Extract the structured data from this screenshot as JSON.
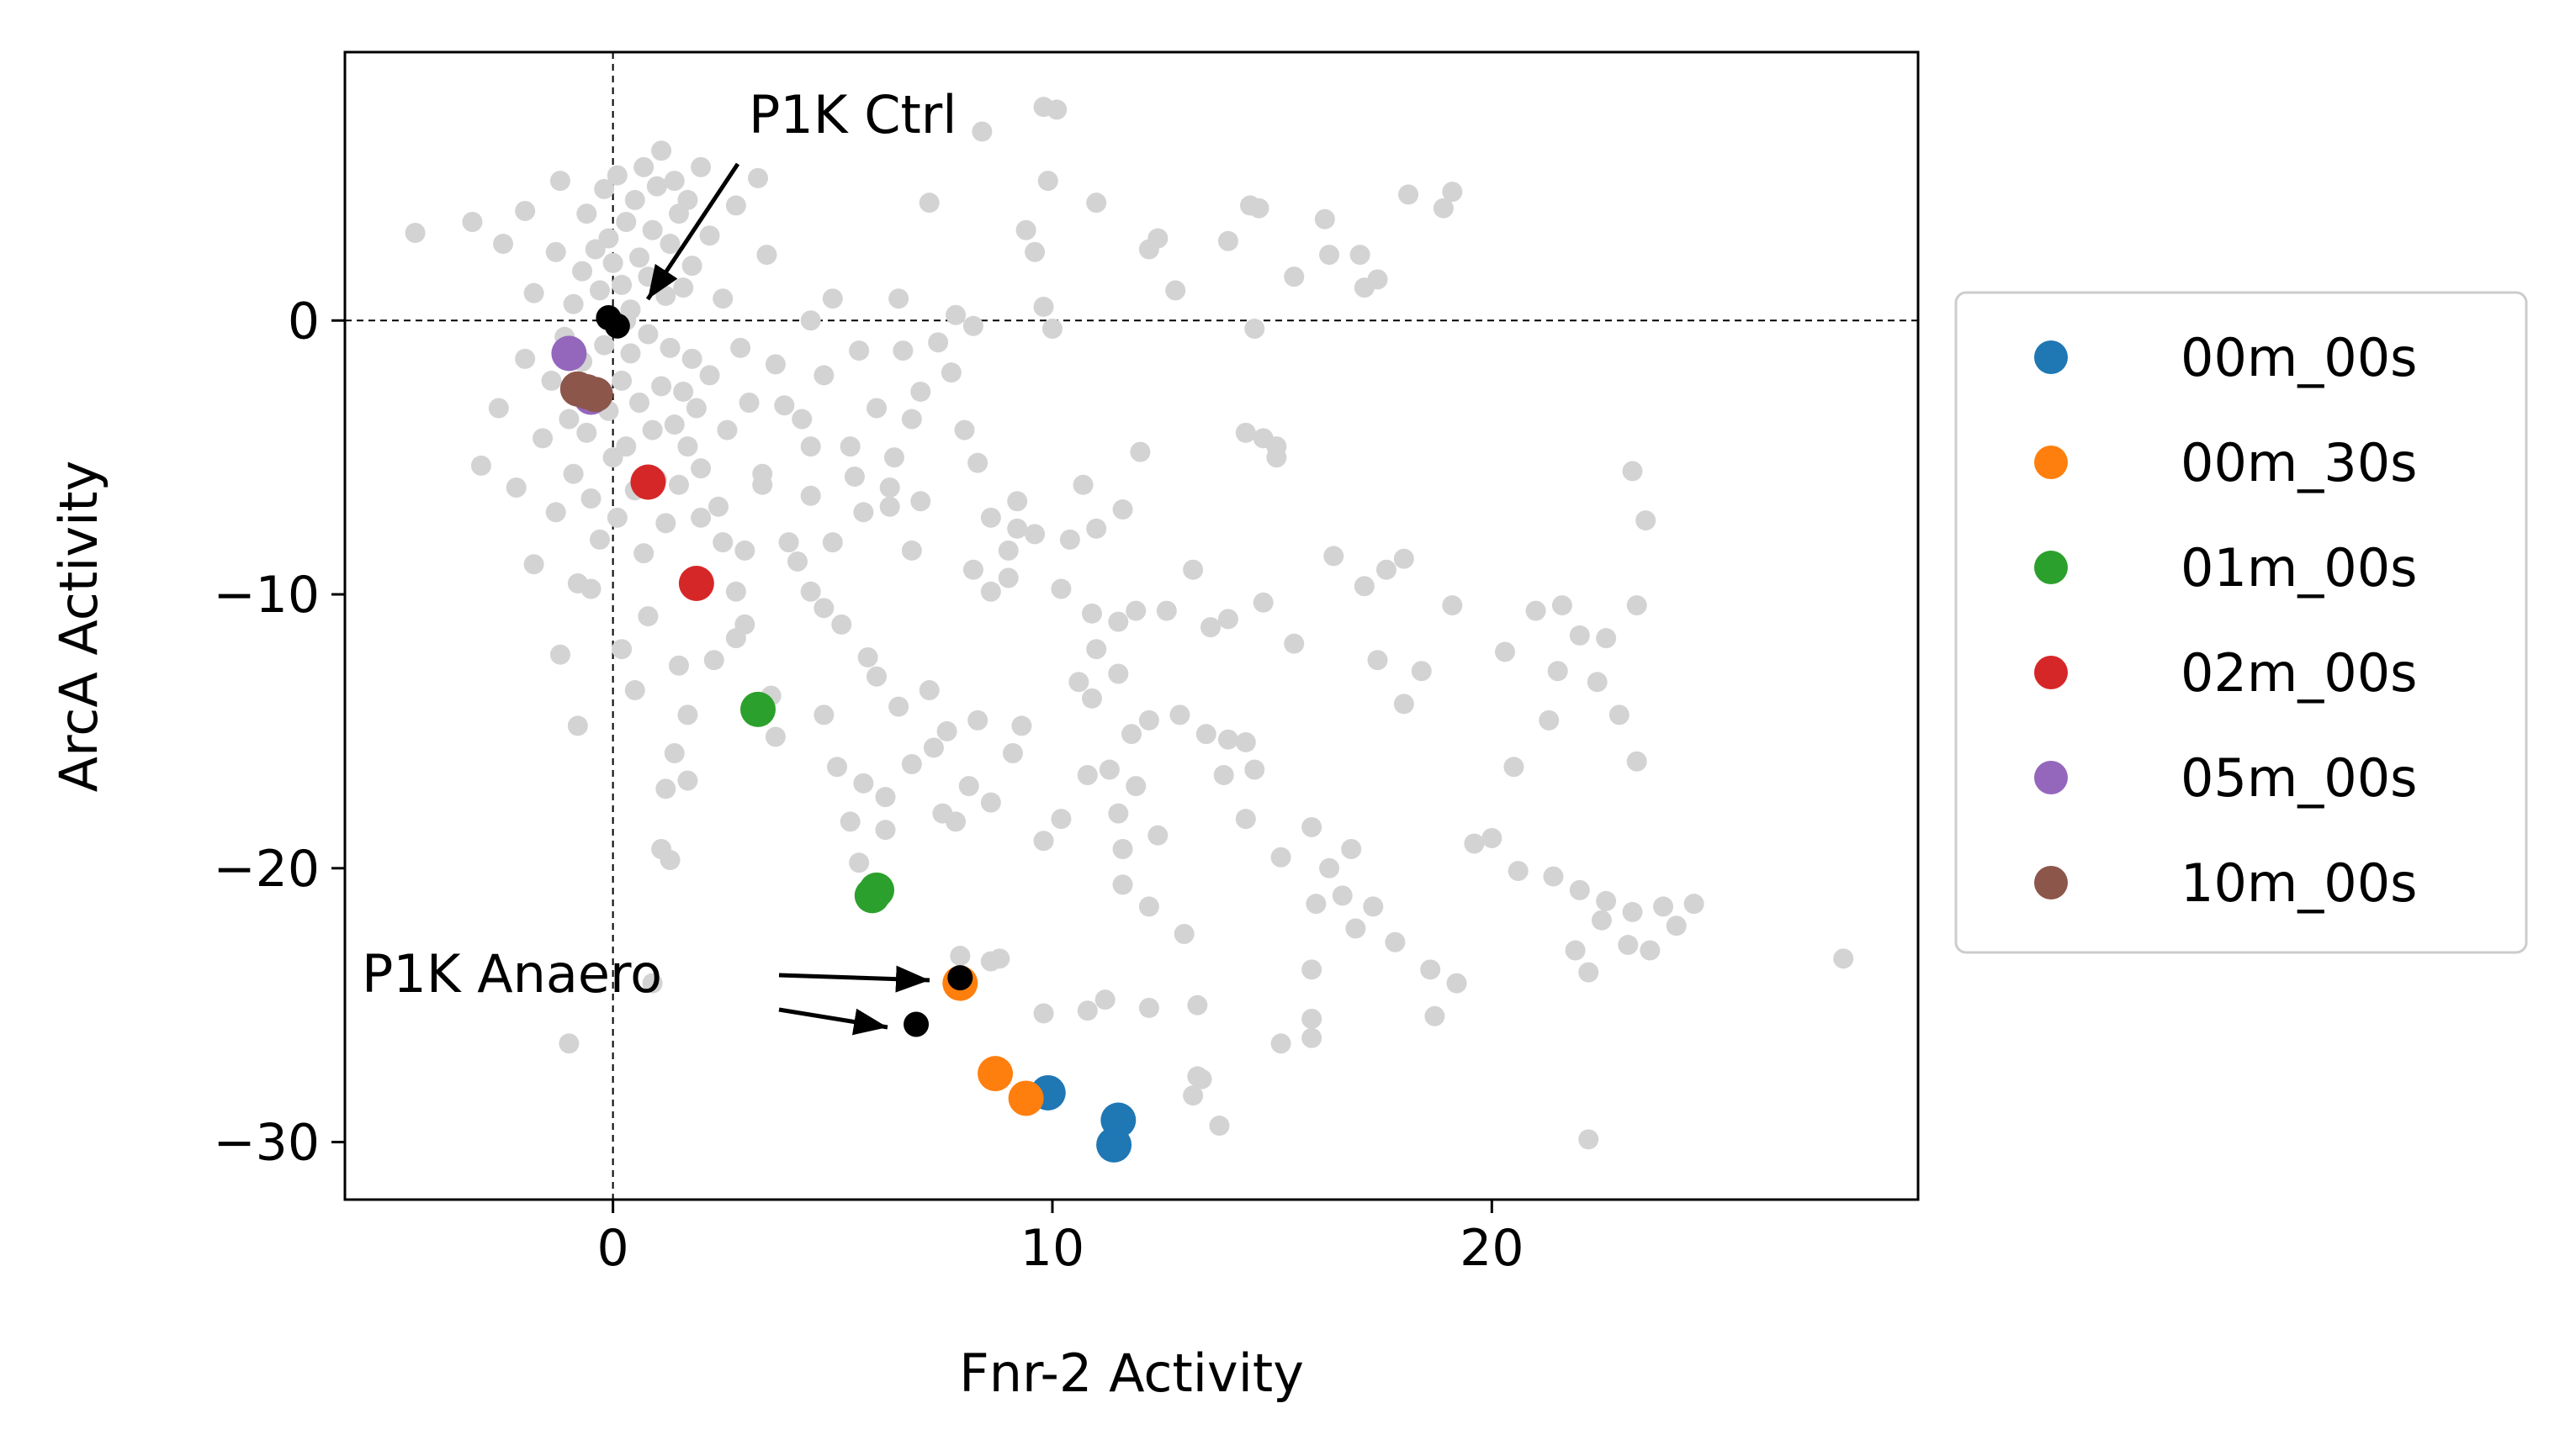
{
  "chart_data": {
    "type": "scatter",
    "xlabel": "Fnr-2 Activity",
    "ylabel": "ArcA Activity",
    "xlim": [
      -6.1,
      29.7
    ],
    "ylim": [
      -32.1,
      9.8
    ],
    "xticks": [
      0,
      10,
      20
    ],
    "yticks": [
      0,
      -10,
      -20,
      -30
    ],
    "reference_lines": {
      "x": 0,
      "y": 0,
      "style": "dashed"
    },
    "grid": false,
    "legend_placement": "outside-right",
    "background_color": "#d3d3d3",
    "background_points": [
      [
        -4.5,
        3.2
      ],
      [
        -3.2,
        3.6
      ],
      [
        -2.5,
        2.8
      ],
      [
        -2.0,
        4.0
      ],
      [
        -1.8,
        1.0
      ],
      [
        -1.3,
        2.5
      ],
      [
        -1.2,
        5.1
      ],
      [
        -0.9,
        0.6
      ],
      [
        -0.7,
        1.8
      ],
      [
        -0.6,
        3.9
      ],
      [
        -0.4,
        2.6
      ],
      [
        -0.3,
        1.1
      ],
      [
        -0.2,
        4.8
      ],
      [
        -0.1,
        3.0
      ],
      [
        0.0,
        2.1
      ],
      [
        0.1,
        5.3
      ],
      [
        0.2,
        1.3
      ],
      [
        0.3,
        3.6
      ],
      [
        0.4,
        0.4
      ],
      [
        0.5,
        4.4
      ],
      [
        0.6,
        2.3
      ],
      [
        0.7,
        5.6
      ],
      [
        0.8,
        1.6
      ],
      [
        0.9,
        3.3
      ],
      [
        1.0,
        4.9
      ],
      [
        1.1,
        6.2
      ],
      [
        1.2,
        0.9
      ],
      [
        1.3,
        2.8
      ],
      [
        1.4,
        5.1
      ],
      [
        1.5,
        3.9
      ],
      [
        1.6,
        1.2
      ],
      [
        1.7,
        4.4
      ],
      [
        1.8,
        2.0
      ],
      [
        2.0,
        5.6
      ],
      [
        2.2,
        3.1
      ],
      [
        2.5,
        0.8
      ],
      [
        2.8,
        4.2
      ],
      [
        3.3,
        5.2
      ],
      [
        3.5,
        2.4
      ],
      [
        0.3,
        0.0
      ],
      [
        -3.0,
        -5.3
      ],
      [
        -2.6,
        -3.2
      ],
      [
        -2.2,
        -6.1
      ],
      [
        -2.0,
        -1.4
      ],
      [
        -1.8,
        -8.9
      ],
      [
        -1.6,
        -4.3
      ],
      [
        -1.4,
        -2.2
      ],
      [
        -1.3,
        -7.0
      ],
      [
        -1.1,
        -0.6
      ],
      [
        -1.0,
        -3.6
      ],
      [
        -0.9,
        -5.6
      ],
      [
        -0.8,
        -9.6
      ],
      [
        -0.7,
        -1.5
      ],
      [
        -0.6,
        -4.1
      ],
      [
        -0.5,
        -6.5
      ],
      [
        -0.4,
        -2.8
      ],
      [
        -0.3,
        -8.0
      ],
      [
        -0.2,
        -0.9
      ],
      [
        -0.1,
        -3.3
      ],
      [
        0.0,
        -5.0
      ],
      [
        0.1,
        -7.2
      ],
      [
        0.2,
        -2.2
      ],
      [
        0.3,
        -4.6
      ],
      [
        0.4,
        -1.2
      ],
      [
        0.5,
        -6.2
      ],
      [
        0.6,
        -3.0
      ],
      [
        0.7,
        -8.5
      ],
      [
        0.8,
        -0.5
      ],
      [
        0.9,
        -4.0
      ],
      [
        1.0,
        -5.8
      ],
      [
        1.1,
        -2.4
      ],
      [
        1.2,
        -7.4
      ],
      [
        1.3,
        -1.0
      ],
      [
        1.4,
        -3.8
      ],
      [
        1.5,
        -6.0
      ],
      [
        1.6,
        -2.6
      ],
      [
        1.7,
        -4.6
      ],
      [
        1.8,
        -1.4
      ],
      [
        1.9,
        -3.2
      ],
      [
        2.0,
        -5.4
      ],
      [
        2.2,
        -2.0
      ],
      [
        2.4,
        -6.8
      ],
      [
        2.6,
        -4.0
      ],
      [
        2.9,
        -1.0
      ],
      [
        3.1,
        -3.0
      ],
      [
        3.4,
        -5.6
      ],
      [
        3.7,
        -1.6
      ],
      [
        4.0,
        -8.1
      ],
      [
        4.3,
        -3.6
      ],
      [
        4.5,
        -6.4
      ],
      [
        -0.8,
        -14.8
      ],
      [
        -1.0,
        -26.4
      ],
      [
        0.2,
        -12.0
      ],
      [
        0.5,
        -13.5
      ],
      [
        0.8,
        -10.8
      ],
      [
        1.1,
        -19.3
      ],
      [
        1.3,
        -19.7
      ],
      [
        1.4,
        -15.8
      ],
      [
        1.7,
        -16.8
      ],
      [
        1.5,
        -12.6
      ],
      [
        0.9,
        -24.2
      ],
      [
        -0.5,
        -9.8
      ],
      [
        -1.2,
        -12.2
      ],
      [
        2.8,
        -11.6
      ],
      [
        2.0,
        -7.2
      ],
      [
        3.0,
        -8.4
      ],
      [
        4.5,
        -9.9
      ],
      [
        5.2,
        -11.1
      ],
      [
        5.8,
        -12.3
      ],
      [
        4.8,
        -10.5
      ],
      [
        5.0,
        0.8
      ],
      [
        5.6,
        -1.1
      ],
      [
        4.8,
        -2.0
      ],
      [
        5.4,
        -4.6
      ],
      [
        6.0,
        -3.2
      ],
      [
        6.6,
        -1.1
      ],
      [
        7.0,
        -2.6
      ],
      [
        7.4,
        -0.8
      ],
      [
        7.7,
        -1.9
      ],
      [
        6.4,
        -5.0
      ],
      [
        5.7,
        -7.0
      ],
      [
        6.3,
        -6.1
      ],
      [
        7.0,
        -6.6
      ],
      [
        8.3,
        -5.2
      ],
      [
        8.0,
        -4.0
      ],
      [
        4.5,
        -4.6
      ],
      [
        3.4,
        -6.0
      ],
      [
        3.9,
        -3.1
      ],
      [
        5.5,
        -5.7
      ],
      [
        6.8,
        -3.6
      ],
      [
        8.6,
        -7.2
      ],
      [
        9.2,
        -6.6
      ],
      [
        9.6,
        -7.8
      ],
      [
        9.0,
        -9.4
      ],
      [
        8.2,
        -9.1
      ],
      [
        10.4,
        -8.0
      ],
      [
        11.0,
        -7.6
      ],
      [
        10.2,
        -9.8
      ],
      [
        10.9,
        -10.7
      ],
      [
        11.5,
        -11.0
      ],
      [
        11.9,
        -10.6
      ],
      [
        12.6,
        -10.6
      ],
      [
        13.2,
        -9.1
      ],
      [
        13.6,
        -11.2
      ],
      [
        14.0,
        -10.9
      ],
      [
        14.8,
        -10.3
      ],
      [
        15.5,
        -11.8
      ],
      [
        16.4,
        -8.6
      ],
      [
        17.1,
        -9.7
      ],
      [
        17.6,
        -9.1
      ],
      [
        18.0,
        -8.7
      ],
      [
        17.4,
        -12.4
      ],
      [
        18.4,
        -12.8
      ],
      [
        18.0,
        -14.0
      ],
      [
        19.1,
        -10.4
      ],
      [
        20.3,
        -12.1
      ],
      [
        21.0,
        -10.6
      ],
      [
        21.6,
        -10.4
      ],
      [
        22.0,
        -11.5
      ],
      [
        22.6,
        -11.6
      ],
      [
        23.3,
        -10.4
      ],
      [
        23.5,
        -7.3
      ],
      [
        23.2,
        -5.5
      ],
      [
        21.5,
        -12.8
      ],
      [
        22.4,
        -13.2
      ],
      [
        22.9,
        -14.4
      ],
      [
        23.3,
        -16.1
      ],
      [
        21.3,
        -14.6
      ],
      [
        20.5,
        -16.3
      ],
      [
        20.0,
        -18.9
      ],
      [
        19.6,
        -19.1
      ],
      [
        20.6,
        -20.1
      ],
      [
        21.4,
        -20.3
      ],
      [
        22.0,
        -20.8
      ],
      [
        22.6,
        -21.2
      ],
      [
        23.2,
        -21.6
      ],
      [
        23.9,
        -21.4
      ],
      [
        24.6,
        -21.3
      ],
      [
        24.2,
        -22.1
      ],
      [
        22.5,
        -21.9
      ],
      [
        21.9,
        -23.0
      ],
      [
        22.2,
        -23.8
      ],
      [
        23.1,
        -22.8
      ],
      [
        23.6,
        -23.0
      ],
      [
        28.0,
        -23.3
      ],
      [
        22.2,
        -29.9
      ],
      [
        18.6,
        -23.7
      ],
      [
        19.2,
        -24.2
      ],
      [
        18.7,
        -25.4
      ],
      [
        17.8,
        -22.7
      ],
      [
        16.6,
        -21.0
      ],
      [
        16.9,
        -22.2
      ],
      [
        17.3,
        -21.4
      ],
      [
        16.8,
        -19.3
      ],
      [
        16.3,
        -20.0
      ],
      [
        16.0,
        -21.3
      ],
      [
        15.9,
        -18.5
      ],
      [
        15.2,
        -19.6
      ],
      [
        14.4,
        -18.2
      ],
      [
        14.6,
        -16.4
      ],
      [
        14.0,
        -15.3
      ],
      [
        13.9,
        -16.6
      ],
      [
        14.4,
        -15.4
      ],
      [
        13.5,
        -15.1
      ],
      [
        12.9,
        -14.4
      ],
      [
        12.2,
        -14.6
      ],
      [
        11.8,
        -15.1
      ],
      [
        11.3,
        -16.4
      ],
      [
        10.8,
        -16.6
      ],
      [
        11.5,
        -18.0
      ],
      [
        11.6,
        -19.3
      ],
      [
        11.9,
        -17.0
      ],
      [
        12.4,
        -18.8
      ],
      [
        10.2,
        -18.2
      ],
      [
        9.8,
        -19.0
      ],
      [
        8.6,
        -17.6
      ],
      [
        8.1,
        -17.0
      ],
      [
        7.8,
        -18.3
      ],
      [
        7.5,
        -18.0
      ],
      [
        6.2,
        -17.4
      ],
      [
        5.7,
        -16.9
      ],
      [
        6.8,
        -16.2
      ],
      [
        7.3,
        -15.6
      ],
      [
        7.6,
        -15.0
      ],
      [
        8.3,
        -14.6
      ],
      [
        9.3,
        -14.8
      ],
      [
        9.1,
        -15.8
      ],
      [
        10.6,
        -13.2
      ],
      [
        11.5,
        -12.9
      ],
      [
        11.0,
        -12.0
      ],
      [
        6.5,
        -14.1
      ],
      [
        6.0,
        -13.0
      ],
      [
        7.2,
        -13.5
      ],
      [
        5.1,
        -16.3
      ],
      [
        5.4,
        -18.3
      ],
      [
        5.6,
        -19.8
      ],
      [
        6.2,
        -18.6
      ],
      [
        4.8,
        -14.4
      ],
      [
        3.6,
        -13.7
      ],
      [
        3.7,
        -15.2
      ],
      [
        7.9,
        -23.2
      ],
      [
        8.6,
        -23.4
      ],
      [
        8.8,
        -23.3
      ],
      [
        9.8,
        -25.3
      ],
      [
        10.8,
        -25.2
      ],
      [
        11.2,
        -24.8
      ],
      [
        12.2,
        -25.1
      ],
      [
        13.3,
        -25.0
      ],
      [
        13.3,
        -27.6
      ],
      [
        13.2,
        -28.3
      ],
      [
        13.8,
        -29.4
      ],
      [
        15.2,
        -26.4
      ],
      [
        15.9,
        -26.2
      ],
      [
        15.9,
        -23.7
      ],
      [
        11.6,
        -20.6
      ],
      [
        12.2,
        -21.4
      ],
      [
        13.0,
        -22.4
      ],
      [
        15.9,
        -25.5
      ],
      [
        13.4,
        -27.7
      ],
      [
        10.9,
        -13.8
      ],
      [
        9.8,
        7.8
      ],
      [
        10.1,
        7.7
      ],
      [
        8.4,
        6.9
      ],
      [
        7.2,
        4.3
      ],
      [
        9.9,
        5.1
      ],
      [
        11.0,
        4.3
      ],
      [
        12.2,
        2.6
      ],
      [
        9.4,
        3.3
      ],
      [
        9.6,
        2.5
      ],
      [
        12.4,
        3.0
      ],
      [
        12.8,
        1.1
      ],
      [
        14.0,
        2.9
      ],
      [
        15.5,
        1.6
      ],
      [
        14.7,
        4.1
      ],
      [
        14.5,
        4.2
      ],
      [
        16.2,
        3.7
      ],
      [
        17.0,
        2.4
      ],
      [
        16.3,
        2.4
      ],
      [
        17.4,
        1.5
      ],
      [
        17.1,
        1.2
      ],
      [
        18.9,
        4.1
      ],
      [
        19.1,
        4.7
      ],
      [
        18.1,
        4.6
      ],
      [
        10.0,
        -0.3
      ],
      [
        14.6,
        -0.3
      ],
      [
        9.8,
        0.5
      ],
      [
        6.5,
        0.8
      ],
      [
        7.8,
        0.2
      ],
      [
        8.2,
        -0.2
      ],
      [
        4.5,
        0.0
      ],
      [
        14.4,
        -4.1
      ],
      [
        14.8,
        -4.3
      ],
      [
        15.1,
        -4.6
      ],
      [
        15.1,
        -5.0
      ],
      [
        12.0,
        -4.8
      ],
      [
        11.6,
        -6.9
      ],
      [
        10.7,
        -6.0
      ],
      [
        9.2,
        -7.6
      ],
      [
        9.0,
        -8.4
      ],
      [
        8.6,
        -9.9
      ],
      [
        2.5,
        -8.1
      ],
      [
        2.8,
        -9.9
      ],
      [
        3.0,
        -11.1
      ],
      [
        2.3,
        -12.4
      ],
      [
        1.7,
        -14.4
      ],
      [
        6.8,
        -8.4
      ],
      [
        6.3,
        -6.8
      ],
      [
        5.0,
        -8.1
      ],
      [
        4.2,
        -8.8
      ],
      [
        1.2,
        -17.1
      ]
    ],
    "series": [
      {
        "name": "00m_00s",
        "color": "#1f77b4",
        "points": [
          [
            9.9,
            -28.2
          ],
          [
            11.5,
            -29.2
          ],
          [
            11.4,
            -30.1
          ]
        ]
      },
      {
        "name": "00m_30s",
        "color": "#ff7f0e",
        "points": [
          [
            7.9,
            -24.2
          ],
          [
            8.7,
            -27.5
          ],
          [
            9.4,
            -28.4
          ]
        ]
      },
      {
        "name": "01m_00s",
        "color": "#2ca02c",
        "points": [
          [
            3.3,
            -14.2
          ],
          [
            5.9,
            -21.0
          ],
          [
            6.0,
            -20.8
          ]
        ]
      },
      {
        "name": "02m_00s",
        "color": "#d62728",
        "points": [
          [
            0.8,
            -5.9
          ],
          [
            1.9,
            -9.6
          ]
        ]
      },
      {
        "name": "05m_00s",
        "color": "#9467bd",
        "points": [
          [
            -1.0,
            -1.2
          ],
          [
            -0.5,
            -2.8
          ]
        ]
      },
      {
        "name": "10m_00s",
        "color": "#8c564b",
        "points": [
          [
            -0.8,
            -2.5
          ],
          [
            -0.6,
            -2.6
          ],
          [
            -0.4,
            -2.7
          ]
        ]
      }
    ],
    "highlight_points": [
      {
        "label": "P1K Ctrl",
        "points": [
          [
            -0.1,
            0.1
          ],
          [
            0.1,
            -0.2
          ]
        ]
      },
      {
        "label": "P1K Anaero",
        "points": [
          [
            7.9,
            -24.0
          ],
          [
            6.9,
            -25.7
          ]
        ]
      }
    ],
    "annotations": {
      "ctrl": "P1K Ctrl",
      "anaero": "P1K Anaero"
    }
  }
}
